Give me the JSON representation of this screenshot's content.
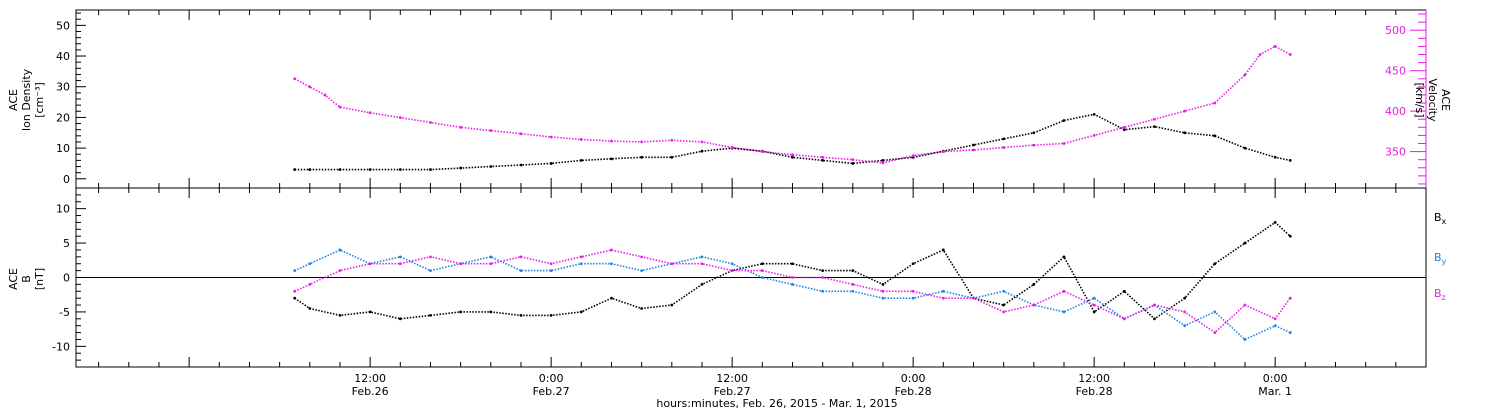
{
  "colors": {
    "black": "#000000",
    "magenta": "#e61ee6",
    "blue": "#1e82e6"
  },
  "chart_data": [
    {
      "type": "scatter",
      "panel": "top",
      "ylabel_left": [
        "ACE",
        "Ion Density",
        "[cm⁻³]"
      ],
      "ylabel_right": [
        "ACE",
        "Velocity",
        "[km/s]"
      ],
      "ylim_left": [
        -3,
        55
      ],
      "ylim_right": [
        305,
        525
      ],
      "yticks_left": [
        0,
        10,
        20,
        30,
        40,
        50
      ],
      "ytick_labels_left": [
        "0",
        "10",
        "20",
        "30",
        "40",
        "50"
      ],
      "yticks_right": [
        350,
        400,
        450,
        500
      ],
      "ytick_labels_right": [
        "350",
        "400",
        "450",
        "500"
      ],
      "grid": false,
      "series": [
        {
          "axis": "left",
          "color": "#000000",
          "x_hours": [
            7,
            8,
            10,
            12,
            14,
            16,
            18,
            20,
            22,
            24,
            26,
            28,
            30,
            32,
            34,
            36,
            38,
            40,
            42,
            44,
            46,
            48,
            50,
            52,
            54,
            56,
            58,
            60,
            62,
            64,
            66,
            68,
            70,
            72,
            73
          ],
          "values": [
            3,
            3,
            3,
            3,
            3,
            3,
            3.5,
            4,
            4.5,
            5,
            6,
            6.5,
            7,
            7,
            9,
            10,
            9,
            7,
            6,
            5,
            6,
            7,
            9,
            11,
            13,
            15,
            19,
            21,
            16,
            17,
            15,
            14,
            10,
            7,
            6
          ]
        },
        {
          "axis": "right",
          "color": "#e61ee6",
          "x_hours": [
            7,
            8,
            9,
            10,
            12,
            14,
            16,
            18,
            20,
            22,
            24,
            26,
            28,
            30,
            32,
            34,
            36,
            38,
            40,
            42,
            44,
            46,
            48,
            50,
            52,
            54,
            56,
            58,
            60,
            62,
            64,
            66,
            68,
            70,
            71,
            72,
            73
          ],
          "values": [
            440,
            430,
            420,
            405,
            398,
            392,
            386,
            380,
            376,
            372,
            368,
            365,
            363,
            362,
            364,
            362,
            355,
            350,
            346,
            343,
            340,
            336,
            345,
            350,
            352,
            355,
            358,
            360,
            370,
            380,
            390,
            400,
            410,
            445,
            470,
            480,
            470
          ]
        }
      ]
    },
    {
      "type": "scatter",
      "panel": "bottom",
      "ylabel": [
        "ACE",
        "B",
        "[nT]"
      ],
      "ylim": [
        -13,
        13
      ],
      "yticks": [
        -10,
        -5,
        0,
        5,
        10
      ],
      "ytick_labels": [
        "-10",
        "-5",
        "0",
        "5",
        "10"
      ],
      "zero_line": true,
      "grid": false,
      "series": [
        {
          "name": "Bx",
          "color": "#000000",
          "x_hours": [
            7,
            8,
            10,
            12,
            14,
            16,
            18,
            20,
            22,
            24,
            26,
            28,
            30,
            32,
            34,
            36,
            38,
            40,
            42,
            44,
            46,
            48,
            50,
            52,
            54,
            56,
            58,
            60,
            62,
            64,
            66,
            68,
            70,
            72,
            73
          ],
          "values": [
            -3,
            -4.5,
            -5.5,
            -5,
            -6,
            -5.5,
            -5,
            -5,
            -5.5,
            -5.5,
            -5,
            -3,
            -4.5,
            -4,
            -1,
            1,
            2,
            2,
            1,
            1,
            -1,
            2,
            4,
            -3,
            -4,
            -1,
            3,
            -5,
            -2,
            -6,
            -3,
            2,
            5,
            8,
            6
          ]
        },
        {
          "name": "By",
          "color": "#1e82e6",
          "x_hours": [
            7,
            8,
            10,
            12,
            14,
            16,
            18,
            20,
            22,
            24,
            26,
            28,
            30,
            32,
            34,
            36,
            38,
            40,
            42,
            44,
            46,
            48,
            50,
            52,
            54,
            56,
            58,
            60,
            62,
            64,
            66,
            68,
            70,
            72,
            73
          ],
          "values": [
            1,
            2,
            4,
            2,
            3,
            1,
            2,
            3,
            1,
            1,
            2,
            2,
            1,
            2,
            3,
            2,
            0,
            -1,
            -2,
            -2,
            -3,
            -3,
            -2,
            -3,
            -2,
            -4,
            -5,
            -3,
            -6,
            -4,
            -7,
            -5,
            -9,
            -7,
            -8
          ]
        },
        {
          "name": "Bz",
          "color": "#e61ee6",
          "x_hours": [
            7,
            8,
            10,
            12,
            14,
            16,
            18,
            20,
            22,
            24,
            26,
            28,
            30,
            32,
            34,
            36,
            38,
            40,
            42,
            44,
            46,
            48,
            50,
            52,
            54,
            56,
            58,
            60,
            62,
            64,
            66,
            68,
            70,
            72,
            73
          ],
          "values": [
            -2,
            -1,
            1,
            2,
            2,
            3,
            2,
            2,
            3,
            2,
            3,
            4,
            3,
            2,
            2,
            1,
            1,
            0,
            0,
            -1,
            -2,
            -2,
            -3,
            -3,
            -5,
            -4,
            -2,
            -4,
            -6,
            -4,
            -5,
            -8,
            -4,
            -6,
            -3
          ]
        }
      ],
      "legend": [
        {
          "text": "B",
          "sub": "x",
          "color": "#000000"
        },
        {
          "text": "B",
          "sub": "y",
          "color": "#1e82e6"
        },
        {
          "text": "B",
          "sub": "z",
          "color": "#e61ee6"
        }
      ]
    }
  ],
  "x_axis": {
    "xlim_hours": [
      -7.5,
      82
    ],
    "major_ticks_hours": [
      12,
      24,
      36,
      48,
      60,
      72
    ],
    "tick_time_labels": [
      "12:00",
      "0:00",
      "12:00",
      "0:00",
      "12:00",
      "0:00"
    ],
    "tick_date_labels": [
      "Feb.26",
      "Feb.27",
      "Feb.27",
      "Feb.28",
      "Feb.28",
      "Mar. 1"
    ],
    "xlabel": "hours:minutes, Feb. 26, 2015 - Mar.  1, 2015"
  }
}
